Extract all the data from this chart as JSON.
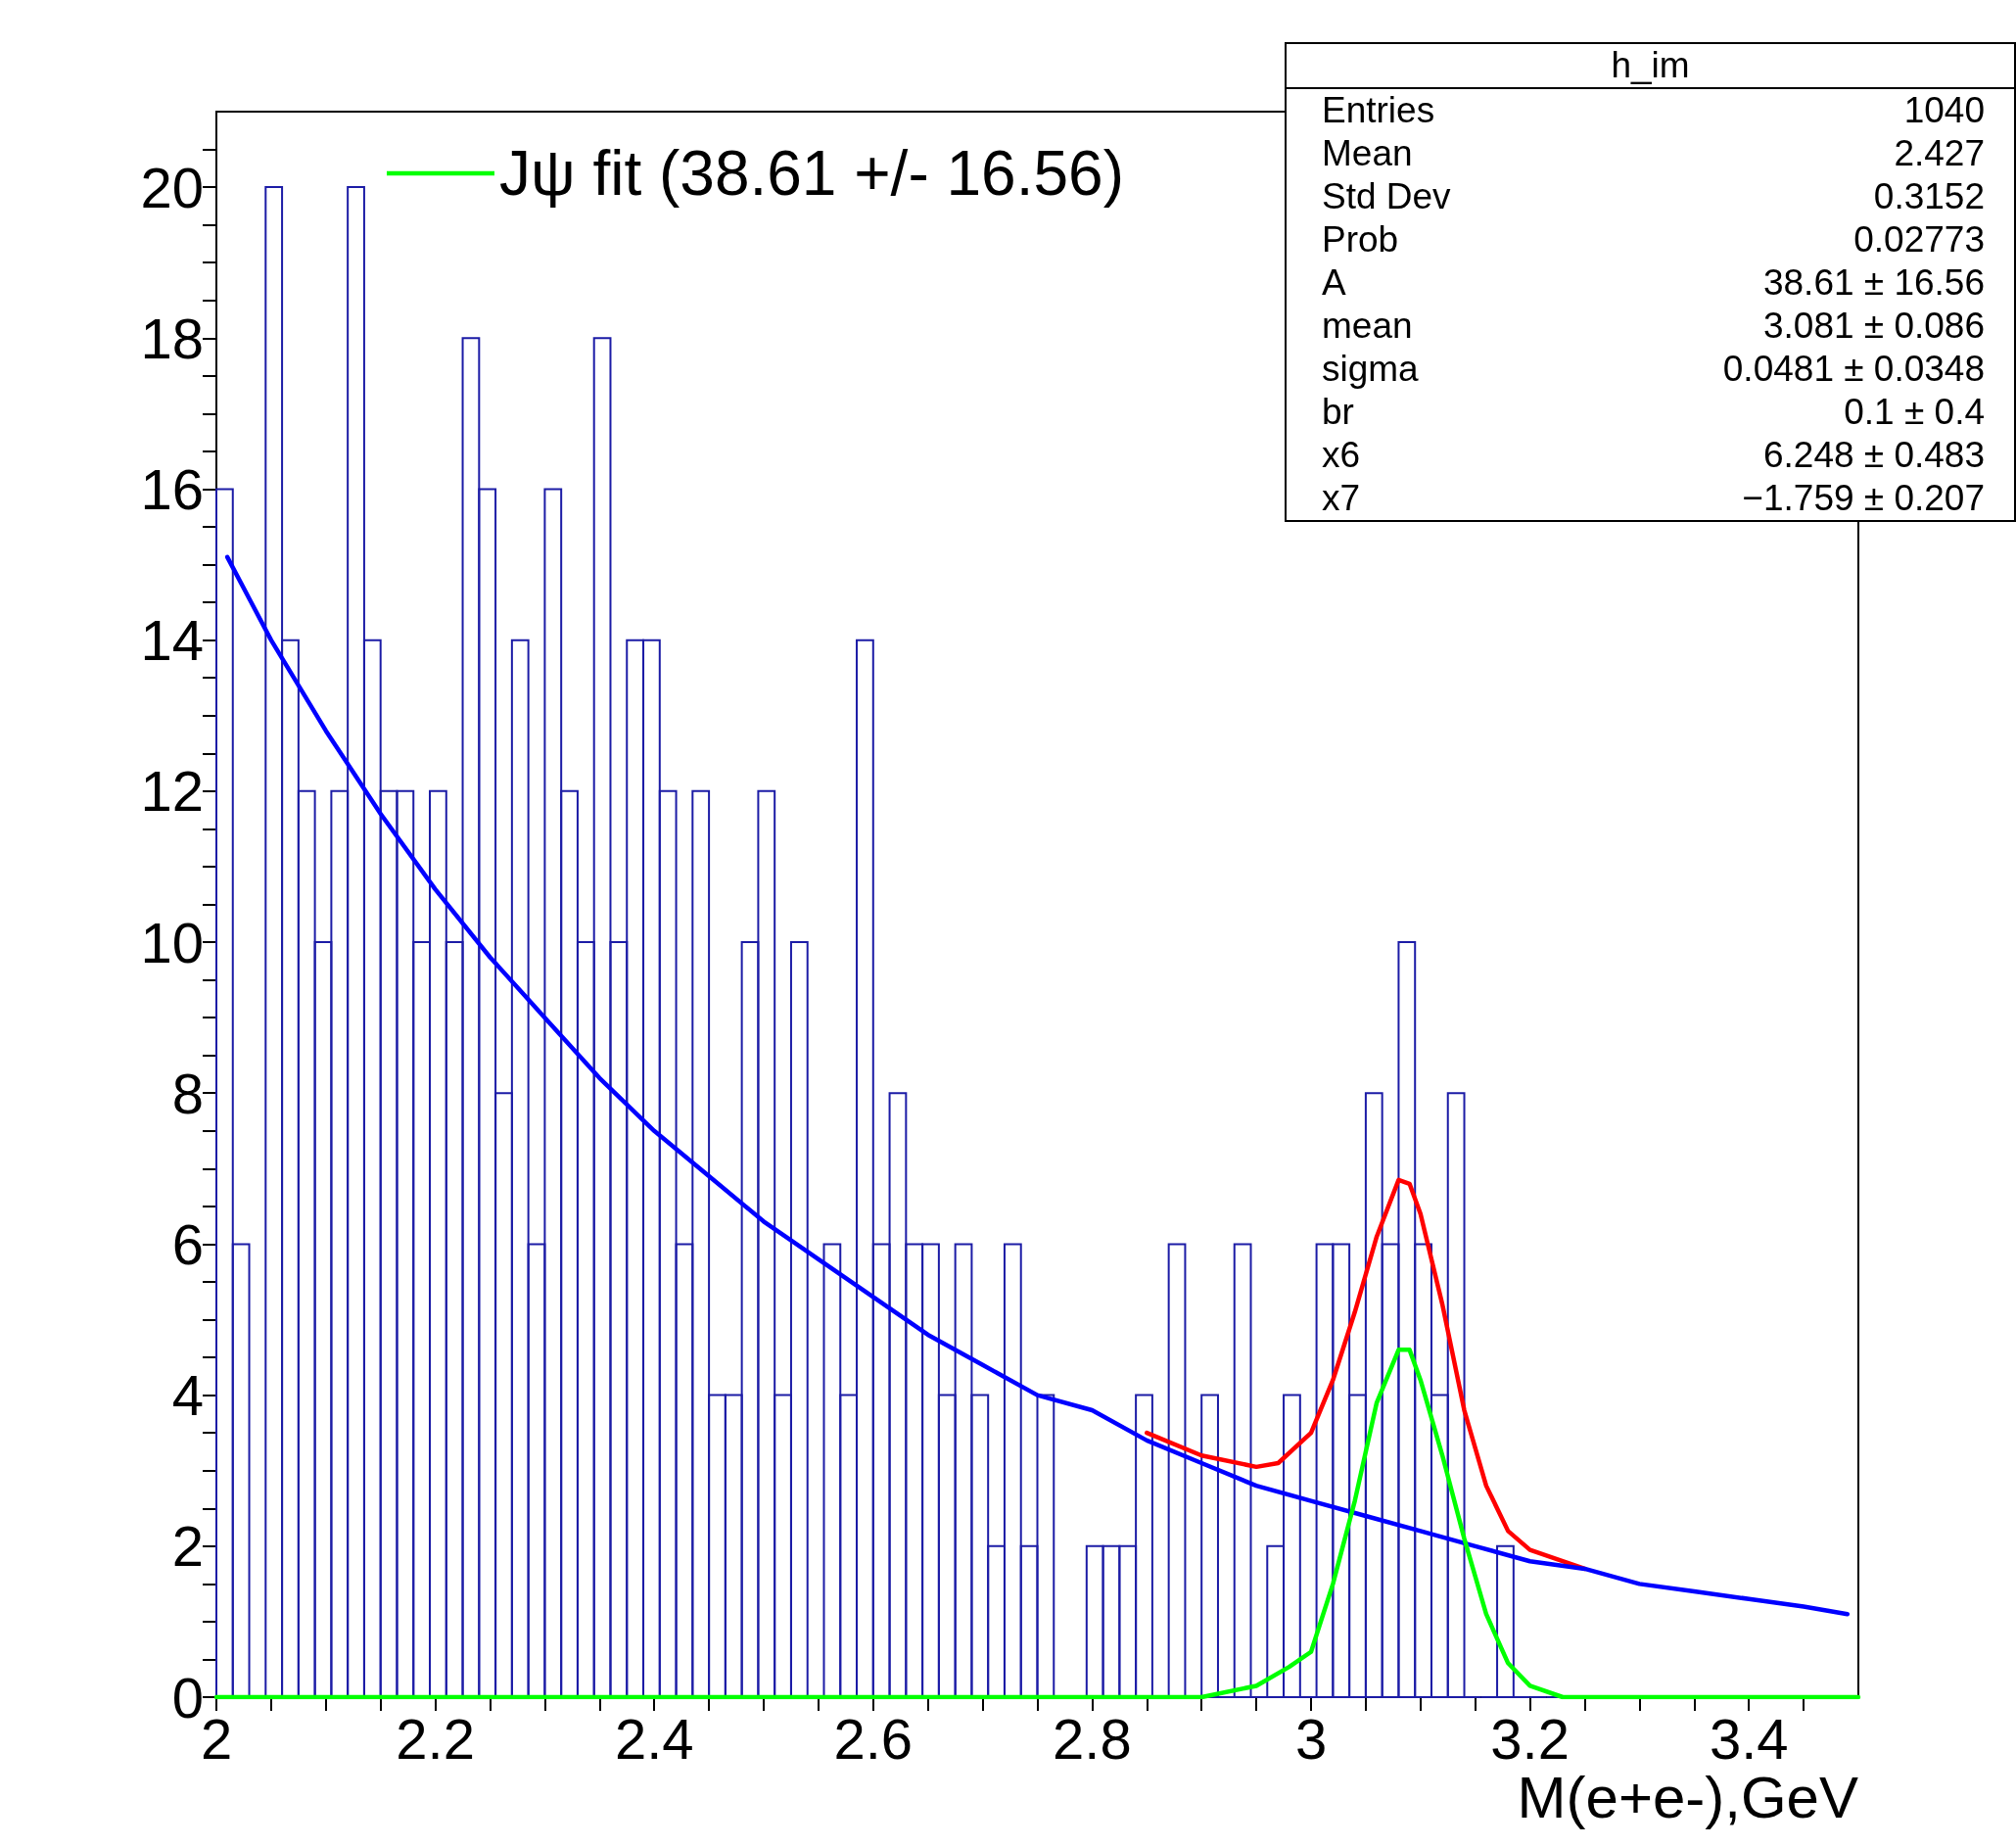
{
  "chart_data": {
    "type": "histogram",
    "xlabel": "M(e+e-),GeV",
    "xlim": [
      2,
      3.5
    ],
    "xticks": [
      2,
      2.2,
      2.4,
      2.6,
      2.8,
      3,
      3.2,
      3.4,
      {
        "value": 2.05,
        "label": null
      },
      {
        "value": 2.1,
        "label": null
      },
      {
        "value": 2.15,
        "label": null
      },
      {
        "value": 2.25,
        "label": null
      },
      {
        "value": 2.3,
        "label": null
      },
      {
        "value": 2.35,
        "label": null
      },
      {
        "value": 2.45,
        "label": null
      },
      {
        "value": 2.5,
        "label": null
      },
      {
        "value": 2.55,
        "label": null
      },
      {
        "value": 2.65,
        "label": null
      },
      {
        "value": 2.7,
        "label": null
      },
      {
        "value": 2.75,
        "label": null
      },
      {
        "value": 2.85,
        "label": null
      },
      {
        "value": 2.9,
        "label": null
      },
      {
        "value": 2.95,
        "label": null
      },
      {
        "value": 3.05,
        "label": null
      },
      {
        "value": 3.1,
        "label": null
      },
      {
        "value": 3.15,
        "label": null
      },
      {
        "value": 3.25,
        "label": null
      },
      {
        "value": 3.3,
        "label": null
      },
      {
        "value": 3.35,
        "label": null
      },
      {
        "value": 3.45,
        "label": null
      }
    ],
    "ylim": [
      0,
      21
    ],
    "yticks": [
      0,
      2,
      4,
      6,
      8,
      10,
      12,
      14,
      16,
      18,
      20,
      {
        "value": 0.5,
        "label": null
      },
      {
        "value": 1,
        "label": null
      },
      {
        "value": 1.5,
        "label": null
      },
      {
        "value": 2.5,
        "label": null
      },
      {
        "value": 3,
        "label": null
      },
      {
        "value": 3.5,
        "label": null
      },
      {
        "value": 4.5,
        "label": null
      },
      {
        "value": 5,
        "label": null
      },
      {
        "value": 5.5,
        "label": null
      },
      {
        "value": 6.5,
        "label": null
      },
      {
        "value": 7,
        "label": null
      },
      {
        "value": 7.5,
        "label": null
      },
      {
        "value": 8.5,
        "label": null
      },
      {
        "value": 9,
        "label": null
      },
      {
        "value": 9.5,
        "label": null
      },
      {
        "value": 10.5,
        "label": null
      },
      {
        "value": 11,
        "label": null
      },
      {
        "value": 11.5,
        "label": null
      },
      {
        "value": 12.5,
        "label": null
      },
      {
        "value": 13,
        "label": null
      },
      {
        "value": 13.5,
        "label": null
      },
      {
        "value": 14.5,
        "label": null
      },
      {
        "value": 15,
        "label": null
      },
      {
        "value": 15.5,
        "label": null
      },
      {
        "value": 16.5,
        "label": null
      },
      {
        "value": 17,
        "label": null
      },
      {
        "value": 17.5,
        "label": null
      },
      {
        "value": 18.5,
        "label": null
      },
      {
        "value": 19,
        "label": null
      },
      {
        "value": 19.5,
        "label": null
      },
      {
        "value": 20.5,
        "label": null
      }
    ],
    "grid": false,
    "legend": "top left",
    "marker": "none",
    "line_style": "solid",
    "annotations": [
      "h_im",
      "Entries\t1040",
      "Mean\t2.427",
      "Std Dev\t0.3152",
      "Prob\t0.02773",
      "A\t38.61 ± 16.56",
      "mean\t3.081 ± 0.086",
      "sigma\t0.0481 ± 0.0348",
      "br\t0.1 ± 0.4",
      "x6\t6.248 ± 0.483",
      "x7\t−1.759 ± 0.207"
    ],
    "series": [
      {
        "color": "#1c1ca6",
        "bins": [
          2,
          2.015,
          2.03,
          2.045,
          2.06,
          2.075,
          2.09,
          2.105,
          2.12,
          2.135,
          2.15,
          2.165,
          2.18,
          2.195,
          2.21,
          2.225,
          2.24,
          2.255,
          2.27,
          2.285,
          2.3,
          2.315,
          2.33,
          2.345,
          2.36,
          2.375,
          2.39,
          2.405,
          2.42,
          2.435,
          2.45,
          2.465,
          2.48,
          2.495,
          2.51,
          2.525,
          2.54,
          2.555,
          2.57,
          2.585,
          2.6,
          2.615,
          2.63,
          2.645,
          2.66,
          2.675,
          2.69,
          2.705,
          2.72,
          2.735,
          2.75,
          2.765,
          2.78,
          2.795,
          2.81,
          2.825,
          2.84,
          2.855,
          2.87,
          2.885,
          2.9,
          2.915,
          2.93,
          2.945,
          2.96,
          2.975,
          2.99,
          3.005,
          3.02,
          3.035,
          3.05,
          3.065,
          3.08,
          3.095,
          3.11,
          3.125,
          3.14,
          3.155,
          3.17,
          3.185,
          3.2,
          3.215,
          3.23,
          3.245,
          3.26,
          3.275,
          3.29,
          3.305,
          3.32,
          3.335,
          3.35,
          3.365,
          3.38,
          3.395,
          3.41,
          3.425,
          3.44,
          3.455,
          3.47,
          3.485,
          3.5
        ],
        "values": [
          16,
          6,
          0,
          20,
          14,
          12,
          10,
          12,
          20,
          14,
          12,
          12,
          10,
          12,
          10,
          18,
          16,
          8,
          14,
          6,
          16,
          12,
          10,
          18,
          10,
          14,
          14,
          12,
          6,
          12,
          4,
          4,
          10,
          12,
          4,
          10,
          0,
          6,
          4,
          14,
          6,
          8,
          6,
          6,
          4,
          6,
          4,
          2,
          6,
          2,
          4,
          0,
          0,
          2,
          2,
          2,
          4,
          0,
          6,
          0,
          4,
          0,
          6,
          0,
          2,
          4,
          0,
          6,
          6,
          4,
          8,
          6,
          10,
          6,
          4,
          8,
          0,
          0,
          2,
          0,
          0,
          0,
          0,
          0,
          0,
          0,
          0,
          0,
          0,
          0,
          0,
          0,
          0,
          0,
          0,
          0,
          0,
          0,
          0,
          0
        ]
      },
      {
        "type": "line",
        "color": "#ff0000",
        "x": [
          2.85,
          2.9,
          2.95,
          2.97,
          3.0,
          3.02,
          3.04,
          3.06,
          3.08,
          3.09,
          3.1,
          3.12,
          3.14,
          3.16,
          3.18,
          3.2,
          3.25
        ],
        "values": [
          3.5,
          3.2,
          3.05,
          3.1,
          3.5,
          4.2,
          5.1,
          6.1,
          6.85,
          6.8,
          6.4,
          5.2,
          3.8,
          2.8,
          2.2,
          1.95,
          1.7
        ]
      },
      {
        "type": "line",
        "color": "#0000ff",
        "x": [
          2.01,
          2.05,
          2.1,
          2.15,
          2.2,
          2.25,
          2.3,
          2.35,
          2.4,
          2.45,
          2.5,
          2.55,
          2.6,
          2.65,
          2.7,
          2.75,
          2.8,
          2.85,
          2.9,
          2.95,
          3.0,
          3.05,
          3.1,
          3.15,
          3.2,
          3.25,
          3.3,
          3.35,
          3.4,
          3.45,
          3.49
        ],
        "values": [
          15.1,
          14.0,
          12.8,
          11.7,
          10.7,
          9.8,
          9.0,
          8.2,
          7.5,
          6.9,
          6.3,
          5.8,
          5.3,
          4.8,
          4.4,
          4.0,
          3.8,
          3.4,
          3.1,
          2.8,
          2.6,
          2.4,
          2.2,
          2.0,
          1.8,
          1.7,
          1.5,
          1.4,
          1.3,
          1.2,
          1.1
        ]
      },
      {
        "type": "line",
        "color": "#00ff00",
        "name": "Jψ fit (38.61 +/- 16.56)",
        "x": [
          2,
          2.5,
          2.9,
          2.95,
          2.98,
          3.0,
          3.02,
          3.04,
          3.06,
          3.08,
          3.09,
          3.1,
          3.12,
          3.14,
          3.16,
          3.18,
          3.2,
          3.23,
          3.5
        ],
        "values": [
          0,
          0,
          0,
          0.15,
          0.4,
          0.6,
          1.5,
          2.6,
          3.9,
          4.6,
          4.6,
          4.2,
          3.2,
          2.1,
          1.1,
          0.45,
          0.15,
          0,
          0
        ]
      }
    ]
  }
}
